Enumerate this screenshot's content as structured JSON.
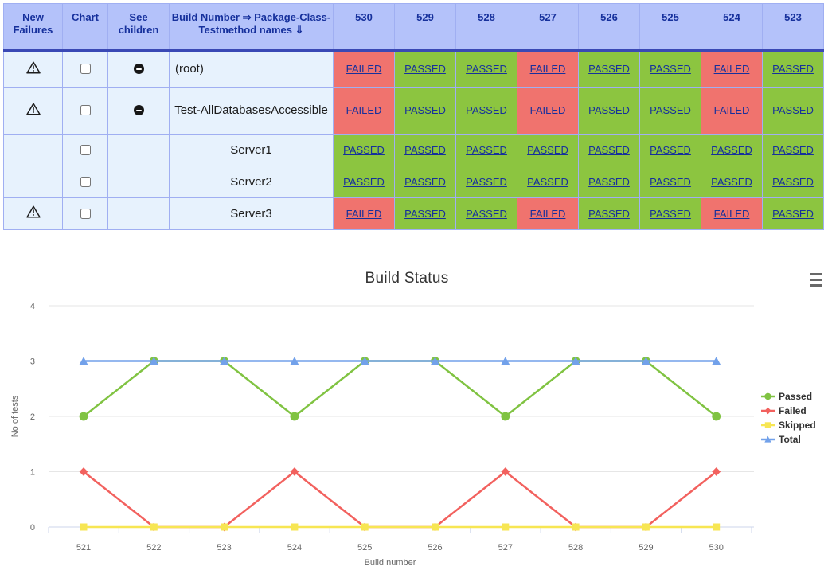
{
  "table": {
    "headers": {
      "new_failures": "New Failures",
      "chart": "Chart",
      "see_children": "See children",
      "build_package": "Build Number ⇒ Package-Class-Testmethod names ⇓",
      "builds": [
        "530",
        "529",
        "528",
        "527",
        "526",
        "525",
        "524",
        "523"
      ]
    },
    "rows": [
      {
        "name": "(root)",
        "align": "left",
        "has_warning": true,
        "checkbox_checked": false,
        "has_collapse": true,
        "results": [
          "FAILED",
          "PASSED",
          "PASSED",
          "FAILED",
          "PASSED",
          "PASSED",
          "FAILED",
          "PASSED"
        ]
      },
      {
        "name": "Test-AllDatabasesAccessible",
        "align": "center",
        "has_warning": true,
        "checkbox_checked": false,
        "has_collapse": true,
        "results": [
          "FAILED",
          "PASSED",
          "PASSED",
          "FAILED",
          "PASSED",
          "PASSED",
          "FAILED",
          "PASSED"
        ]
      },
      {
        "name": "Server1",
        "align": "center",
        "has_warning": false,
        "checkbox_checked": false,
        "has_collapse": false,
        "results": [
          "PASSED",
          "PASSED",
          "PASSED",
          "PASSED",
          "PASSED",
          "PASSED",
          "PASSED",
          "PASSED"
        ]
      },
      {
        "name": "Server2",
        "align": "center",
        "has_warning": false,
        "checkbox_checked": false,
        "has_collapse": false,
        "results": [
          "PASSED",
          "PASSED",
          "PASSED",
          "PASSED",
          "PASSED",
          "PASSED",
          "PASSED",
          "PASSED"
        ]
      },
      {
        "name": "Server3",
        "align": "center",
        "has_warning": true,
        "checkbox_checked": false,
        "has_collapse": false,
        "results": [
          "FAILED",
          "PASSED",
          "PASSED",
          "FAILED",
          "PASSED",
          "PASSED",
          "FAILED",
          "PASSED"
        ]
      }
    ],
    "colors": {
      "header_bg": "#b4c2fa",
      "row_bg": "#e7f2fd",
      "border": "#a0aff2",
      "divider": "#3a49b5",
      "navy_text": "#16309c",
      "passed_bg": "#8cc540",
      "failed_bg": "#f0736e"
    },
    "icons": {
      "warning": "warning-triangle-icon",
      "collapse": "collapse-children-icon",
      "checkbox": "chart-checkbox"
    }
  },
  "chart_data": {
    "type": "line",
    "title": "Build Status",
    "categories": [
      "521",
      "522",
      "523",
      "524",
      "525",
      "526",
      "527",
      "528",
      "529",
      "530"
    ],
    "series": [
      {
        "name": "Passed",
        "color": "#80c342",
        "marker": "circle",
        "values": [
          2,
          3,
          3,
          2,
          3,
          3,
          2,
          3,
          3,
          2
        ]
      },
      {
        "name": "Failed",
        "color": "#f2615e",
        "marker": "diamond",
        "values": [
          1,
          0,
          0,
          1,
          0,
          0,
          1,
          0,
          0,
          1
        ]
      },
      {
        "name": "Skipped",
        "color": "#f7e653",
        "marker": "square",
        "values": [
          0,
          0,
          0,
          0,
          0,
          0,
          0,
          0,
          0,
          0
        ]
      },
      {
        "name": "Total",
        "color": "#72a1ea",
        "marker": "triangle",
        "values": [
          3,
          3,
          3,
          3,
          3,
          3,
          3,
          3,
          3,
          3
        ]
      }
    ],
    "xlabel": "Build number",
    "ylabel": "No of tests",
    "ylim": [
      0,
      4
    ],
    "yticks": [
      0,
      1,
      2,
      3,
      4
    ],
    "grid": true,
    "legend_position": "right",
    "axis_text_color": "#666666",
    "legend_text_color": "#333333",
    "gridline_color": "#e6e6e6",
    "axis_line_color": "#ccd6eb",
    "menu_icon": "hamburger-menu-icon"
  }
}
